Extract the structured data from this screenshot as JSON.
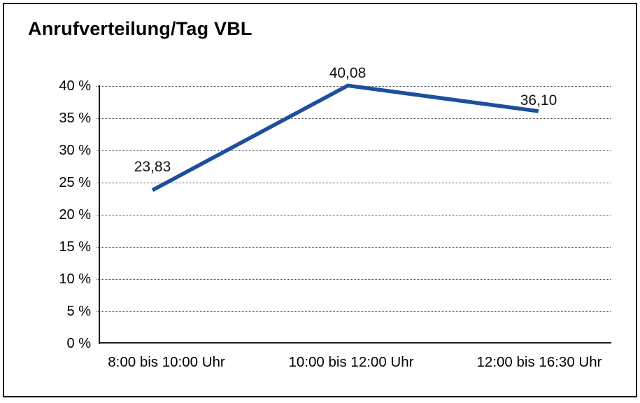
{
  "chart_data": {
    "type": "line",
    "title": "Anrufverteilung/Tag VBL",
    "categories": [
      "8:00 bis 10:00 Uhr",
      "10:00 bis 12:00 Uhr",
      "12:00 bis 16:30 Uhr"
    ],
    "values": [
      23.83,
      40.08,
      36.1
    ],
    "value_labels": [
      "23,83",
      "40,08",
      "36,10"
    ],
    "xlabel": "",
    "ylabel": "",
    "ylim": [
      0,
      40
    ],
    "ytick_step": 5,
    "ytick_labels": [
      "0 %",
      "5 %",
      "10 %",
      "15 %",
      "20 %",
      "25 %",
      "30 %",
      "35 %",
      "40 %"
    ],
    "grid": "horizontal-dotted",
    "legend_position": "none",
    "markers": "none",
    "line_color": "#1C4F9C",
    "axis_color": "#1c1c1c",
    "text_color": "#000000",
    "background_color": "#FFFFFF"
  }
}
